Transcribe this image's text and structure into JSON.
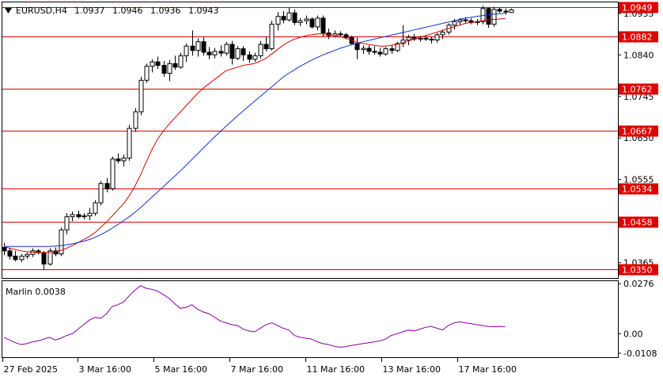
{
  "chart_data": [
    {
      "type": "candlestick",
      "header": {
        "symbol": "EURUSD,H4",
        "open": "1.0937",
        "high": "1.0946",
        "low": "1.0936",
        "close": "1.0943"
      },
      "ylim": [
        1.033,
        1.096
      ],
      "y_ticks": [
        "1.0935",
        "1.0840",
        "1.0745",
        "1.0650",
        "1.0555",
        "1.0460",
        "1.0365"
      ],
      "levels": [
        "1.0949",
        "1.0882",
        "1.0762",
        "1.0667",
        "1.0534",
        "1.0458",
        "1.0350"
      ],
      "level_color": "#e00000",
      "x_ticks": [
        "27 Feb 2025",
        "3 Mar 16:00",
        "5 Mar 16:00",
        "7 Mar 16:00",
        "11 Mar 16:00",
        "13 Mar 16:00",
        "17 Mar 16:00"
      ],
      "bull_color": "#ffffff",
      "bear_color": "#000000",
      "candles": [
        [
          1.04,
          1.041,
          1.0382,
          1.0392
        ],
        [
          1.0392,
          1.0398,
          1.0372,
          1.038
        ],
        [
          1.038,
          1.0392,
          1.0368,
          1.0372
        ],
        [
          1.0372,
          1.0385,
          1.0366,
          1.038
        ],
        [
          1.038,
          1.0388,
          1.0374,
          1.0384
        ],
        [
          1.0384,
          1.0398,
          1.0378,
          1.0392
        ],
        [
          1.0392,
          1.0396,
          1.0384,
          1.0388
        ],
        [
          1.0388,
          1.0392,
          1.0348,
          1.0362
        ],
        [
          1.0362,
          1.0398,
          1.0358,
          1.0392
        ],
        [
          1.0392,
          1.04,
          1.038,
          1.0385
        ],
        [
          1.0385,
          1.0445,
          1.038,
          1.044
        ],
        [
          1.044,
          1.0478,
          1.043,
          1.047
        ],
        [
          1.047,
          1.0482,
          1.046,
          1.0475
        ],
        [
          1.0475,
          1.0484,
          1.0466,
          1.047
        ],
        [
          1.047,
          1.0478,
          1.0464,
          1.0472
        ],
        [
          1.0472,
          1.049,
          1.0462,
          1.0478
        ],
        [
          1.0478,
          1.0508,
          1.0472,
          1.0502
        ],
        [
          1.0502,
          1.0552,
          1.0496,
          1.0546
        ],
        [
          1.0546,
          1.0558,
          1.0526,
          1.0534
        ],
        [
          1.0534,
          1.0608,
          1.053,
          1.0602
        ],
        [
          1.0602,
          1.0615,
          1.0592,
          1.0598
        ],
        [
          1.0598,
          1.0612,
          1.0585,
          1.0604
        ],
        [
          1.0604,
          1.068,
          1.0598,
          1.0672
        ],
        [
          1.0672,
          1.0718,
          1.0664,
          1.071
        ],
        [
          1.071,
          1.079,
          1.0702,
          1.0782
        ],
        [
          1.0782,
          1.082,
          1.0776,
          1.0814
        ],
        [
          1.0814,
          1.083,
          1.08,
          1.0824
        ],
        [
          1.0824,
          1.0836,
          1.0808,
          1.0816
        ],
        [
          1.0816,
          1.0826,
          1.079,
          1.0798
        ],
        [
          1.0798,
          1.0828,
          1.078,
          1.082
        ],
        [
          1.082,
          1.0838,
          1.0806,
          1.0812
        ],
        [
          1.0812,
          1.0845,
          1.0808,
          1.0838
        ],
        [
          1.0838,
          1.0866,
          1.0824,
          1.086
        ],
        [
          1.086,
          1.0896,
          1.0838,
          1.085
        ],
        [
          1.085,
          1.0878,
          1.0836,
          1.087
        ],
        [
          1.087,
          1.088,
          1.0838,
          1.0846
        ],
        [
          1.0846,
          1.0858,
          1.083,
          1.084
        ],
        [
          1.084,
          1.0856,
          1.0832,
          1.0848
        ],
        [
          1.0848,
          1.0862,
          1.0836,
          1.0844
        ],
        [
          1.0844,
          1.087,
          1.0838,
          1.0864
        ],
        [
          1.0864,
          1.0872,
          1.0818,
          1.0832
        ],
        [
          1.0832,
          1.086,
          1.0828,
          1.0854
        ],
        [
          1.0854,
          1.086,
          1.0826,
          1.084
        ],
        [
          1.084,
          1.0848,
          1.0822,
          1.083
        ],
        [
          1.083,
          1.0845,
          1.0824,
          1.0838
        ],
        [
          1.0838,
          1.0872,
          1.0832,
          1.0864
        ],
        [
          1.0864,
          1.0882,
          1.0848,
          1.0854
        ],
        [
          1.0854,
          1.0918,
          1.085,
          1.091
        ],
        [
          1.091,
          1.0938,
          1.0896,
          1.0928
        ],
        [
          1.0928,
          1.094,
          1.0912,
          1.092
        ],
        [
          1.092,
          1.0948,
          1.0916,
          1.0936
        ],
        [
          1.0936,
          1.0944,
          1.0908,
          1.0914
        ],
        [
          1.0914,
          1.0924,
          1.0906,
          1.0918
        ],
        [
          1.0918,
          1.093,
          1.091,
          1.0922
        ],
        [
          1.0922,
          1.0926,
          1.09,
          1.0904
        ],
        [
          1.0904,
          1.093,
          1.0896,
          1.0924
        ],
        [
          1.0924,
          1.093,
          1.0882,
          1.089
        ],
        [
          1.089,
          1.09,
          1.0876,
          1.0884
        ],
        [
          1.0884,
          1.0896,
          1.088,
          1.0888
        ],
        [
          1.0888,
          1.0894,
          1.088,
          1.0886
        ],
        [
          1.0886,
          1.089,
          1.0876,
          1.088
        ],
        [
          1.088,
          1.0884,
          1.0862,
          1.0866
        ],
        [
          1.0866,
          1.088,
          1.083,
          1.0852
        ],
        [
          1.0852,
          1.0862,
          1.0842,
          1.0855
        ],
        [
          1.0855,
          1.0862,
          1.084,
          1.0848
        ],
        [
          1.0848,
          1.086,
          1.084,
          1.0846
        ],
        [
          1.0846,
          1.0856,
          1.0836,
          1.0842
        ],
        [
          1.0842,
          1.0858,
          1.0838,
          1.0854
        ],
        [
          1.0854,
          1.0862,
          1.0842,
          1.085
        ],
        [
          1.085,
          1.087,
          1.0846,
          1.0866
        ],
        [
          1.0866,
          1.0908,
          1.0858,
          1.0874
        ],
        [
          1.0874,
          1.0886,
          1.0862,
          1.088
        ],
        [
          1.088,
          1.0888,
          1.0872,
          1.0876
        ],
        [
          1.0876,
          1.0884,
          1.087,
          1.0878
        ],
        [
          1.0878,
          1.0884,
          1.0872,
          1.0876
        ],
        [
          1.0876,
          1.0882,
          1.0866,
          1.0874
        ],
        [
          1.0874,
          1.089,
          1.0868,
          1.0886
        ],
        [
          1.0886,
          1.0898,
          1.0876,
          1.0892
        ],
        [
          1.0892,
          1.0912,
          1.0886,
          1.0908
        ],
        [
          1.0908,
          1.0922,
          1.0898,
          1.0916
        ],
        [
          1.0916,
          1.0924,
          1.0908,
          1.092
        ],
        [
          1.092,
          1.0926,
          1.0912,
          1.0918
        ],
        [
          1.0918,
          1.0924,
          1.091,
          1.0914
        ],
        [
          1.0914,
          1.0922,
          1.0908,
          1.0916
        ],
        [
          1.0916,
          1.0952,
          1.091,
          1.0946
        ],
        [
          1.0946,
          1.0948,
          1.0902,
          1.091
        ],
        [
          1.091,
          1.095,
          1.0904,
          1.0944
        ],
        [
          1.0944,
          1.0948,
          1.0936,
          1.094
        ],
        [
          1.094,
          1.0946,
          1.0932,
          1.0938
        ],
        [
          1.0937,
          1.0946,
          1.0936,
          1.0943
        ]
      ],
      "series": [
        {
          "name": "",
          "color": "#e00000",
          "values": [
            1.0402,
            1.0398,
            1.0395,
            1.0392,
            1.039,
            1.0389,
            1.0389,
            1.0388,
            1.0389,
            1.039,
            1.0393,
            1.0398,
            1.0404,
            1.0411,
            1.0418,
            1.0425,
            1.0434,
            1.0446,
            1.0458,
            1.0472,
            1.0486,
            1.05,
            1.0518,
            1.054,
            1.0566,
            1.0596,
            1.0624,
            1.0648,
            1.0666,
            1.0682,
            1.0696,
            1.071,
            1.0724,
            1.0738,
            1.0752,
            1.0764,
            1.0774,
            1.0784,
            1.0794,
            1.0804,
            1.0808,
            1.0812,
            1.0816,
            1.0818,
            1.082,
            1.0826,
            1.0832,
            1.0842,
            1.0852,
            1.0862,
            1.087,
            1.0876,
            1.088,
            1.0884,
            1.0886,
            1.0888,
            1.0888,
            1.0886,
            1.0884,
            1.0882,
            1.0878,
            1.0874,
            1.0868,
            1.0866,
            1.0864,
            1.0862,
            1.086,
            1.086,
            1.0862,
            1.0864,
            1.0868,
            1.0872,
            1.0876,
            1.088,
            1.0884,
            1.0888,
            1.0892,
            1.0896,
            1.09,
            1.0904,
            1.0908,
            1.0912,
            1.0914,
            1.0916,
            1.0918,
            1.092,
            1.0921,
            1.0922,
            1.0923
          ]
        },
        {
          "name": "",
          "color": "#1030d0",
          "values": [
            1.0402,
            1.0402,
            1.0402,
            1.0402,
            1.0402,
            1.0402,
            1.0402,
            1.0402,
            1.0402,
            1.0403,
            1.0404,
            1.0406,
            1.0408,
            1.0411,
            1.0414,
            1.0418,
            1.0423,
            1.0429,
            1.0436,
            1.0444,
            1.0452,
            1.0461,
            1.047,
            1.048,
            1.0491,
            1.0503,
            1.0515,
            1.0527,
            1.0539,
            1.0551,
            1.0563,
            1.0575,
            1.0588,
            1.0601,
            1.0614,
            1.0627,
            1.064,
            1.0653,
            1.0665,
            1.0677,
            1.0689,
            1.0701,
            1.0712,
            1.0723,
            1.0734,
            1.0745,
            1.0756,
            1.0767,
            1.0778,
            1.0789,
            1.0798,
            1.0806,
            1.0814,
            1.0821,
            1.0828,
            1.0834,
            1.084,
            1.0845,
            1.085,
            1.0855,
            1.0859,
            1.0863,
            1.0867,
            1.087,
            1.0873,
            1.0876,
            1.0879,
            1.0882,
            1.0885,
            1.0888,
            1.0891,
            1.0894,
            1.0897,
            1.09,
            1.0903,
            1.0906,
            1.0909,
            1.0912,
            1.0915,
            1.0918,
            1.0921,
            1.0924,
            1.0926,
            1.0928,
            1.093,
            1.0932,
            1.0933,
            1.0934,
            1.0935
          ]
        }
      ]
    },
    {
      "type": "line",
      "title": "Marlin 0.0038",
      "ylim": [
        -0.013,
        0.029
      ],
      "y_ticks": [
        "0.0276",
        "0.00",
        "-0.0108"
      ],
      "series": [
        {
          "name": "",
          "color": "#8a00a0",
          "values": [
            -0.002,
            -0.0035,
            -0.005,
            -0.006,
            -0.0055,
            -0.0045,
            -0.004,
            -0.003,
            -0.002,
            -0.0035,
            -0.0025,
            -0.001,
            0.0,
            0.0025,
            0.005,
            0.0075,
            0.009,
            0.0085,
            0.011,
            0.015,
            0.016,
            0.0175,
            0.021,
            0.024,
            0.0265,
            0.025,
            0.0245,
            0.0235,
            0.0215,
            0.0195,
            0.0165,
            0.014,
            0.0145,
            0.016,
            0.0135,
            0.012,
            0.011,
            0.009,
            0.007,
            0.006,
            0.005,
            0.0045,
            0.0025,
            0.0015,
            0.001,
            0.003,
            0.005,
            0.006,
            0.0045,
            0.003,
            0.002,
            -0.001,
            -0.002,
            -0.0025,
            -0.003,
            -0.0045,
            -0.0055,
            -0.006,
            -0.007,
            -0.0075,
            -0.0072,
            -0.0065,
            -0.006,
            -0.0055,
            -0.005,
            -0.0045,
            -0.004,
            -0.003,
            -0.001,
            0.0,
            0.001,
            0.002,
            0.0015,
            0.0025,
            0.0035,
            0.004,
            0.003,
            0.002,
            0.0045,
            0.006,
            0.0065,
            0.006,
            0.0055,
            0.005,
            0.0045,
            0.004,
            0.0038,
            0.004,
            0.0038
          ]
        }
      ]
    }
  ]
}
